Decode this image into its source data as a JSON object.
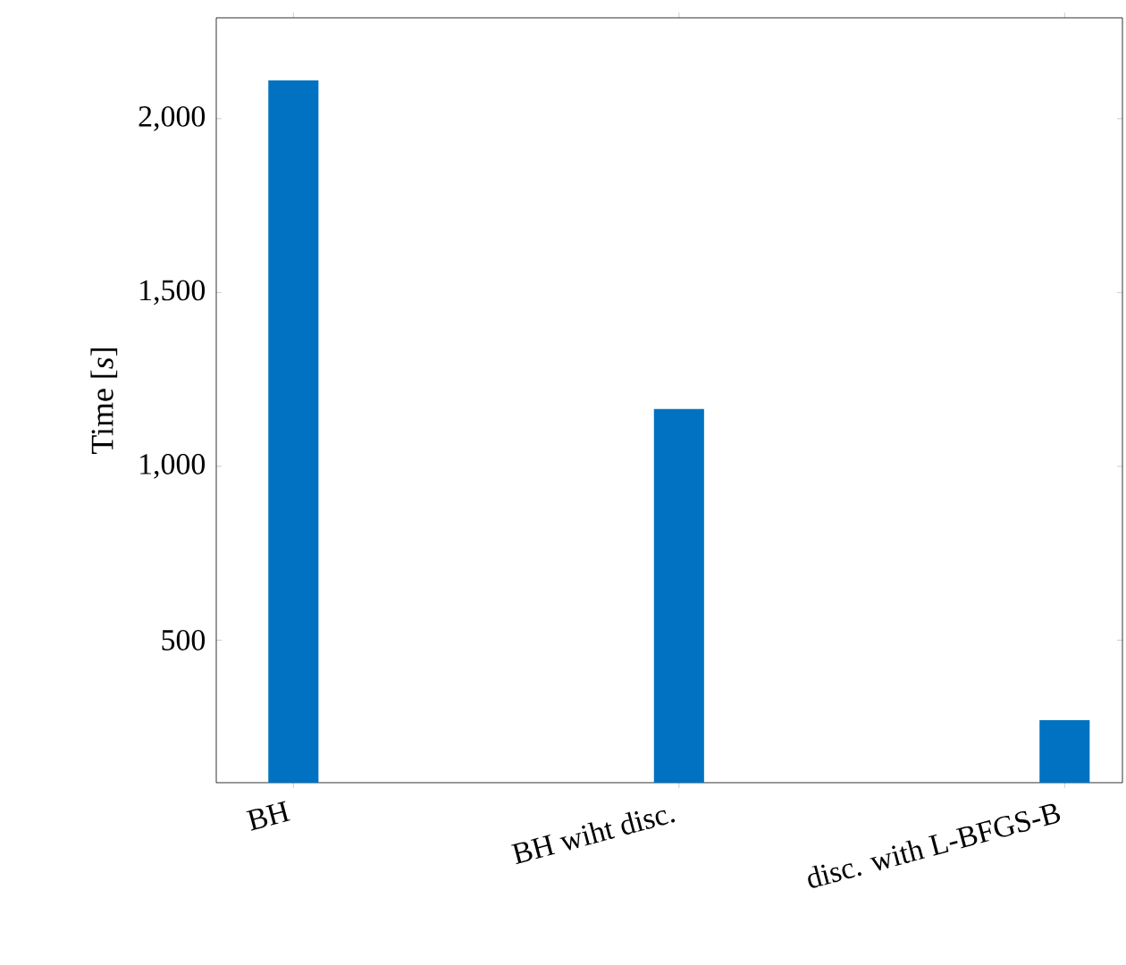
{
  "chart_data": {
    "type": "bar",
    "ylabel": "Time [*s*]",
    "categories": [
      "BH",
      "BH wiht disc.",
      "disc. with L-BFGS-B"
    ],
    "values": [
      2110,
      1165,
      270
    ],
    "color": "#0072c1",
    "ylim": [
      90,
      2290
    ],
    "yticks": [
      {
        "value": 500,
        "label": "500"
      },
      {
        "value": 1000,
        "label": "1,000"
      },
      {
        "value": 1500,
        "label": "1,500"
      },
      {
        "value": 2000,
        "label": "2,000"
      }
    ]
  }
}
